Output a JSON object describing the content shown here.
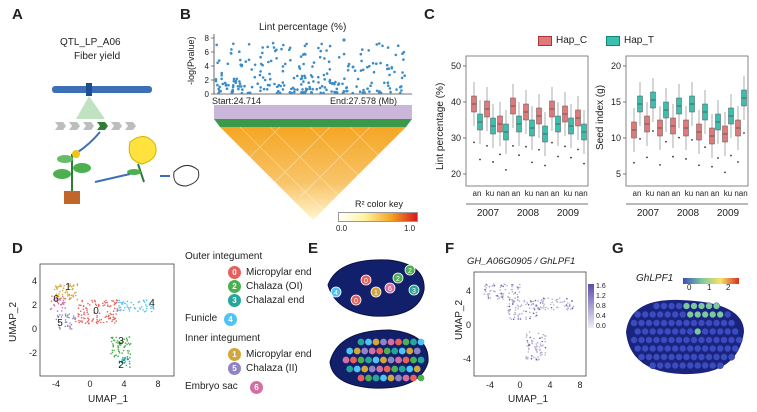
{
  "panels": {
    "A": {
      "letter": "A",
      "qtl_label": "QTL_LP_A06",
      "trait_label": "Fiber yield",
      "chromosome_color": "#3d6fb6"
    },
    "B": {
      "letter": "B",
      "title": "Lint percentage (%)",
      "ylabel": "-log(Pvalue)",
      "yticks": [
        "0",
        "2",
        "4",
        "6",
        "8"
      ],
      "start_label": "Start:24.714",
      "end_label": "End:27.578 (Mb)",
      "colorkey_title": "R² color key",
      "colorkey_min": "0.0",
      "colorkey_max": "1.0",
      "colors": {
        "points": "#3a8cc7",
        "low": "#fffbd1",
        "mid": "#f5a623",
        "high": "#d7191c"
      }
    },
    "C": {
      "letter": "C",
      "legend": [
        {
          "label": "Hap_C",
          "color": "#e07a7a"
        },
        {
          "label": "Hap_T",
          "color": "#3cbfae"
        }
      ],
      "left_ylabel": "Lint percentage (%)",
      "left_yticks": [
        "20",
        "30",
        "40",
        "50"
      ],
      "right_ylabel": "Seed index (g)",
      "right_yticks": [
        "5",
        "10",
        "15",
        "20"
      ],
      "xgroup_labels": [
        "an",
        "ku",
        "nan",
        "an",
        "ku",
        "nan",
        "an",
        "ku",
        "nan"
      ],
      "years": [
        "2007",
        "2008",
        "2009"
      ]
    },
    "D": {
      "letter": "D",
      "xlabel": "UMAP_1",
      "ylabel": "UMAP_2",
      "xticks": [
        "-4",
        "0",
        "4",
        "8"
      ],
      "yticks": [
        "4",
        "2",
        "0",
        "-2"
      ],
      "cluster_labels": [
        "1",
        "6",
        "0",
        "5",
        "4",
        "3",
        "2"
      ]
    },
    "legend_D": {
      "groups": [
        {
          "heading": "Outer integument",
          "items": [
            {
              "num": "0",
              "label": "Micropylar end",
              "color": "#e8605c"
            },
            {
              "num": "2",
              "label": "Chalaza (OI)",
              "color": "#4caf50"
            },
            {
              "num": "3",
              "label": "Chalazal end",
              "color": "#26a69a"
            }
          ]
        },
        {
          "heading": "Funicle",
          "items": [
            {
              "num": "4",
              "label": "",
              "color": "#4fc3f7"
            }
          ]
        },
        {
          "heading": "Inner integument",
          "items": [
            {
              "num": "1",
              "label": "Micropylar end",
              "color": "#d4a63a"
            },
            {
              "num": "5",
              "label": "Chalaza (II)",
              "color": "#8e86c4"
            }
          ]
        },
        {
          "heading": "Embryo sac",
          "items": [
            {
              "num": "6",
              "label": "",
              "color": "#d56fa3"
            }
          ]
        }
      ]
    },
    "E": {
      "letter": "E"
    },
    "F": {
      "letter": "F",
      "title": "GH_A06G0905 / GhLPF1",
      "xlabel": "UMAP_1",
      "ylabel": "UMAP_2",
      "xticks": [
        "-4",
        "0",
        "4",
        "8"
      ],
      "yticks": [
        "4",
        "0",
        "-4"
      ],
      "colorbar_ticks": [
        "1.6",
        "1.2",
        "0.8",
        "0.4",
        "0.0"
      ]
    },
    "G": {
      "letter": "G",
      "title": "GhLPF1",
      "colorbar_ticks": [
        "0",
        "1",
        "2"
      ]
    }
  }
}
